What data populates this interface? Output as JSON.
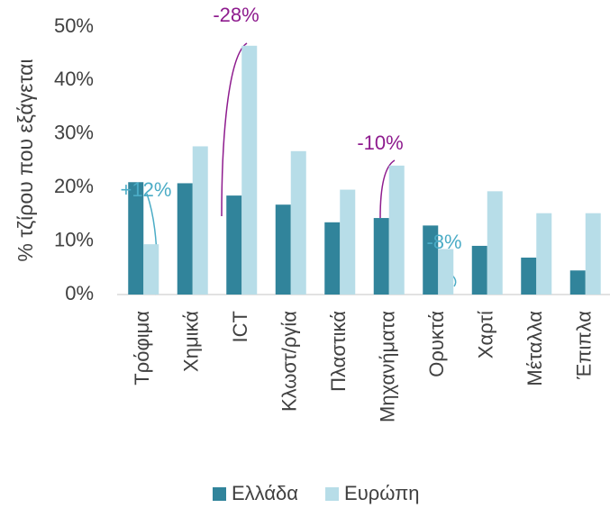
{
  "chart_data": {
    "type": "bar",
    "ylabel": "% τζίρου που εξάγεται",
    "categories": [
      "Τρόφιμα",
      "Χημικά",
      "ICT",
      "Κλωστ/ργία",
      "Πλαστικά",
      "Μηχανήματα",
      "Ορυκτά",
      "Χαρτί",
      "Μέταλλα",
      "Έπιπλα"
    ],
    "series": [
      {
        "name": "Ελλάδα",
        "color": "#31849b",
        "values": [
          21,
          20.8,
          18.5,
          16.8,
          13.5,
          14.3,
          12.9,
          9.1,
          6.9,
          4.5
        ]
      },
      {
        "name": "Ευρώπη",
        "color": "#b7dde8",
        "values": [
          9.4,
          27.7,
          46.5,
          26.8,
          19.6,
          24.1,
          8.5,
          19.3,
          15.2,
          15.2
        ]
      }
    ],
    "ylim": [
      0,
      50
    ],
    "yticks": [
      {
        "value": 0,
        "label": "0%"
      },
      {
        "value": 10,
        "label": "10%"
      },
      {
        "value": 20,
        "label": "20%"
      },
      {
        "value": 30,
        "label": "30%"
      },
      {
        "value": 40,
        "label": "40%"
      },
      {
        "value": 50,
        "label": "50%"
      }
    ],
    "annotations": [
      {
        "text": "+12%",
        "color": "#4bacc6"
      },
      {
        "text": "-28%",
        "color": "#8e1b8e"
      },
      {
        "text": "-10%",
        "color": "#8e1b8e"
      },
      {
        "text": "-8%",
        "color": "#4bacc6"
      }
    ],
    "legend": "bottom"
  }
}
